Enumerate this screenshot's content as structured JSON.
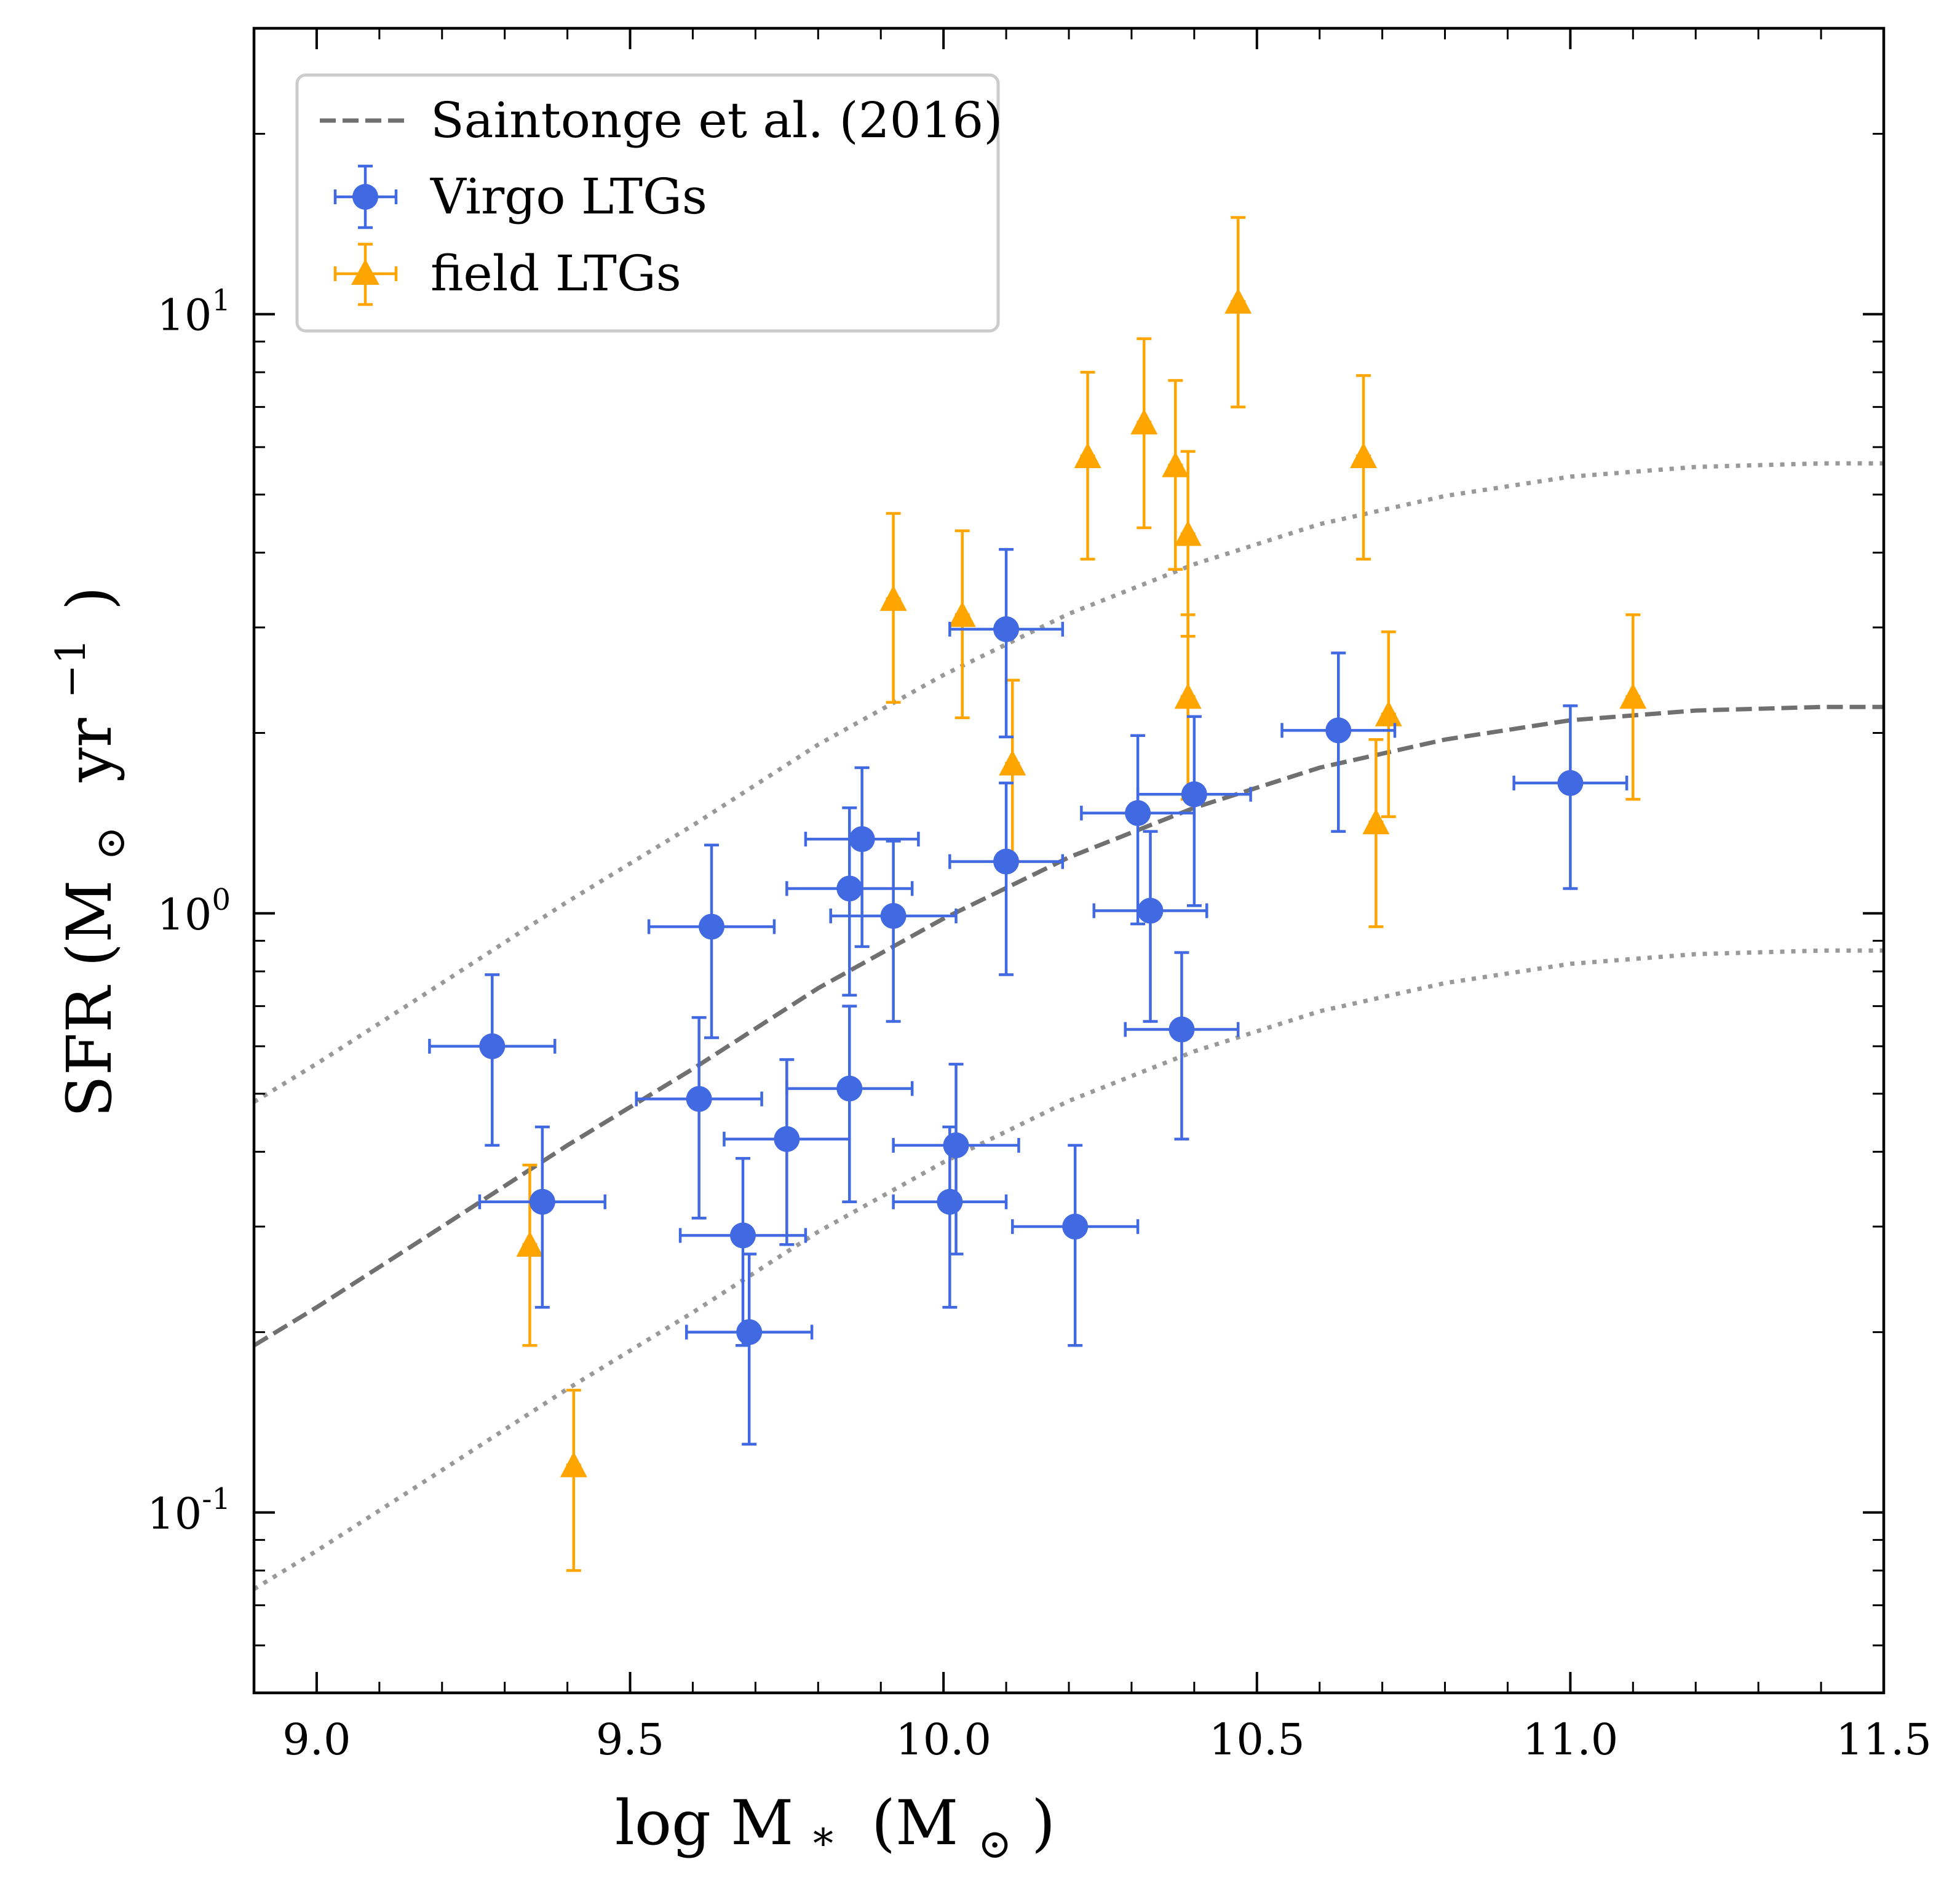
{
  "colors": {
    "virgo": "#4169E1",
    "field": "#FFA500",
    "fit": "#707070",
    "scatter_band": "#999999",
    "axes": "#000000",
    "legend_border": "#cccccc"
  },
  "chart_data": {
    "type": "scatter",
    "title": "",
    "xlabel": "log M",
    "xlabel_sub": "*",
    "xlabel_unit_open": "(M",
    "xlabel_unit_sub": "⊙",
    "xlabel_unit_close": ")",
    "ylabel": "SFR (M",
    "ylabel_sub": "⊙",
    "ylabel_unit": "yr",
    "ylabel_sup": "−1",
    "ylabel_close": ")",
    "xlim": [
      8.9,
      11.5
    ],
    "ylim": [
      0.05,
      30
    ],
    "yscale": "log",
    "legend_position": "top-left",
    "x_ticks": [
      {
        "value": 9.0,
        "label": "9.0"
      },
      {
        "value": 9.5,
        "label": "9.5"
      },
      {
        "value": 10.0,
        "label": "10.0"
      },
      {
        "value": 10.5,
        "label": "10.5"
      },
      {
        "value": 11.0,
        "label": "11.0"
      },
      {
        "value": 11.5,
        "label": "11.5"
      }
    ],
    "y_ticks": [
      {
        "value": 0.1,
        "base": "10",
        "exp": "-1"
      },
      {
        "value": 1,
        "base": "10",
        "exp": "0"
      },
      {
        "value": 10,
        "base": "10",
        "exp": "1"
      }
    ],
    "fit": {
      "name": "Saintonge et al. (2016)",
      "x": [
        8.9,
        9.0,
        9.2,
        9.4,
        9.6,
        9.8,
        10.0,
        10.2,
        10.4,
        10.6,
        10.8,
        11.0,
        11.2,
        11.4,
        11.5
      ],
      "y": [
        0.19,
        0.22,
        0.3,
        0.41,
        0.55,
        0.75,
        0.98,
        1.24,
        1.5,
        1.75,
        1.95,
        2.1,
        2.18,
        2.21,
        2.21
      ],
      "scatter_factor": 2.55
    },
    "series": [
      {
        "name": "Virgo LTGs",
        "marker": "circle",
        "points": [
          {
            "x": 9.28,
            "y": 0.6,
            "xerr": 0.1,
            "ylo": 0.41,
            "yhi": 0.79
          },
          {
            "x": 9.36,
            "y": 0.33,
            "xerr": 0.1,
            "ylo": 0.22,
            "yhi": 0.44
          },
          {
            "x": 9.61,
            "y": 0.49,
            "xerr": 0.1,
            "ylo": 0.31,
            "yhi": 0.67
          },
          {
            "x": 9.63,
            "y": 0.95,
            "xerr": 0.1,
            "ylo": 0.62,
            "yhi": 1.3
          },
          {
            "x": 9.68,
            "y": 0.29,
            "xerr": 0.1,
            "ylo": 0.19,
            "yhi": 0.39
          },
          {
            "x": 9.69,
            "y": 0.2,
            "xerr": 0.1,
            "ylo": 0.13,
            "yhi": 0.27
          },
          {
            "x": 9.75,
            "y": 0.42,
            "xerr": 0.1,
            "ylo": 0.28,
            "yhi": 0.57
          },
          {
            "x": 9.85,
            "y": 0.51,
            "xerr": 0.1,
            "ylo": 0.33,
            "yhi": 0.7
          },
          {
            "x": 9.85,
            "y": 1.1,
            "xerr": 0.1,
            "ylo": 0.73,
            "yhi": 1.5
          },
          {
            "x": 9.87,
            "y": 1.33,
            "xerr": 0.09,
            "ylo": 0.88,
            "yhi": 1.75
          },
          {
            "x": 9.92,
            "y": 0.99,
            "xerr": 0.1,
            "ylo": 0.66,
            "yhi": 1.32
          },
          {
            "x": 10.01,
            "y": 0.33,
            "xerr": 0.09,
            "ylo": 0.22,
            "yhi": 0.44
          },
          {
            "x": 10.02,
            "y": 0.41,
            "xerr": 0.1,
            "ylo": 0.27,
            "yhi": 0.56
          },
          {
            "x": 10.1,
            "y": 2.98,
            "xerr": 0.09,
            "ylo": 1.97,
            "yhi": 4.05
          },
          {
            "x": 10.1,
            "y": 1.22,
            "xerr": 0.09,
            "ylo": 0.79,
            "yhi": 1.65
          },
          {
            "x": 10.21,
            "y": 0.3,
            "xerr": 0.1,
            "ylo": 0.19,
            "yhi": 0.41
          },
          {
            "x": 10.31,
            "y": 1.47,
            "xerr": 0.09,
            "ylo": 0.96,
            "yhi": 1.98
          },
          {
            "x": 10.33,
            "y": 1.01,
            "xerr": 0.09,
            "ylo": 0.66,
            "yhi": 1.37
          },
          {
            "x": 10.38,
            "y": 0.64,
            "xerr": 0.09,
            "ylo": 0.42,
            "yhi": 0.86
          },
          {
            "x": 10.4,
            "y": 1.58,
            "xerr": 0.09,
            "ylo": 1.03,
            "yhi": 2.13
          },
          {
            "x": 10.63,
            "y": 2.02,
            "xerr": 0.09,
            "ylo": 1.37,
            "yhi": 2.72
          },
          {
            "x": 11.0,
            "y": 1.65,
            "xerr": 0.09,
            "ylo": 1.1,
            "yhi": 2.22
          }
        ]
      },
      {
        "name": "field LTGs",
        "marker": "triangle",
        "points": [
          {
            "x": 9.34,
            "y": 0.28,
            "ylo": 0.19,
            "yhi": 0.38
          },
          {
            "x": 9.41,
            "y": 0.12,
            "ylo": 0.08,
            "yhi": 0.16
          },
          {
            "x": 9.92,
            "y": 3.35,
            "ylo": 2.25,
            "yhi": 4.65
          },
          {
            "x": 10.03,
            "y": 3.15,
            "ylo": 2.12,
            "yhi": 4.35
          },
          {
            "x": 10.11,
            "y": 1.78,
            "ylo": 1.22,
            "yhi": 2.45
          },
          {
            "x": 10.23,
            "y": 5.8,
            "ylo": 3.9,
            "yhi": 8.0
          },
          {
            "x": 10.32,
            "y": 6.6,
            "ylo": 4.4,
            "yhi": 9.1
          },
          {
            "x": 10.37,
            "y": 5.6,
            "ylo": 3.75,
            "yhi": 7.75
          },
          {
            "x": 10.39,
            "y": 4.3,
            "ylo": 2.9,
            "yhi": 5.9
          },
          {
            "x": 10.39,
            "y": 2.3,
            "ylo": 1.55,
            "yhi": 3.15
          },
          {
            "x": 10.47,
            "y": 10.5,
            "ylo": 7.0,
            "yhi": 14.5
          },
          {
            "x": 10.67,
            "y": 5.8,
            "ylo": 3.9,
            "yhi": 7.9
          },
          {
            "x": 10.69,
            "y": 1.42,
            "ylo": 0.95,
            "yhi": 1.95
          },
          {
            "x": 10.71,
            "y": 2.15,
            "ylo": 1.45,
            "yhi": 2.95
          },
          {
            "x": 11.1,
            "y": 2.3,
            "ylo": 1.55,
            "yhi": 3.15
          }
        ]
      }
    ]
  }
}
